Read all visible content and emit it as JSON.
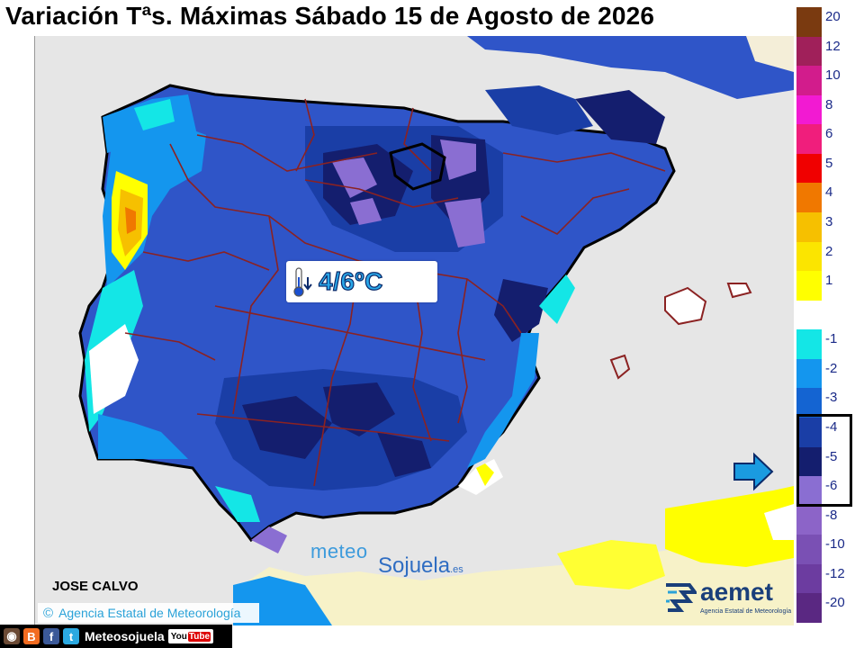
{
  "title": "Variación Tªs. Máximas Sábado 15 de Agosto de 2026",
  "badge": {
    "icon": "thermometer-down-icon",
    "value": "4/6ºC"
  },
  "legend": {
    "swatches": [
      {
        "label": "20",
        "color": "#7a3a10"
      },
      {
        "label": "12",
        "color": "#a0205a"
      },
      {
        "label": "10",
        "color": "#d21c8c"
      },
      {
        "label": "8",
        "color": "#f21ad2"
      },
      {
        "label": "6",
        "color": "#f01e7c"
      },
      {
        "label": "5",
        "color": "#f00000"
      },
      {
        "label": "4",
        "color": "#f07800"
      },
      {
        "label": "3",
        "color": "#f6c000"
      },
      {
        "label": "2",
        "color": "#fbe500"
      },
      {
        "label": "1",
        "color": "#ffff00"
      },
      {
        "label": "",
        "color": "#ffffff"
      },
      {
        "label": "-1",
        "color": "#14e6e6"
      },
      {
        "label": "-2",
        "color": "#1496ee"
      },
      {
        "label": "-3",
        "color": "#1464d2"
      },
      {
        "label": "-4",
        "color": "#1a3ea6"
      },
      {
        "label": "-5",
        "color": "#141e6e"
      },
      {
        "label": "-6",
        "color": "#8a6ed2"
      },
      {
        "label": "-8",
        "color": "#8c64c8"
      },
      {
        "label": "-10",
        "color": "#7a50b4"
      },
      {
        "label": "-12",
        "color": "#6c3ca0"
      },
      {
        "label": "-20",
        "color": "#5a2882"
      }
    ]
  },
  "colors": {
    "sea": "#e6e6e6",
    "land_base": "#2f55c8",
    "border": "#8b2222",
    "outline": "#000000"
  },
  "author": "JOSE CALVO",
  "copyright": {
    "symbol": "©",
    "text": "Agencia Estatal de Meteorología"
  },
  "watermark": {
    "part1": "meteo",
    "part2": "Sojuela",
    "suffix": ".es"
  },
  "logo": {
    "name": "aemet",
    "subtitle": "Agencia Estatal de Meteorología"
  },
  "social": {
    "handle": "Meteosojuela",
    "youtube": "You",
    "youtube_tube": "Tube"
  }
}
